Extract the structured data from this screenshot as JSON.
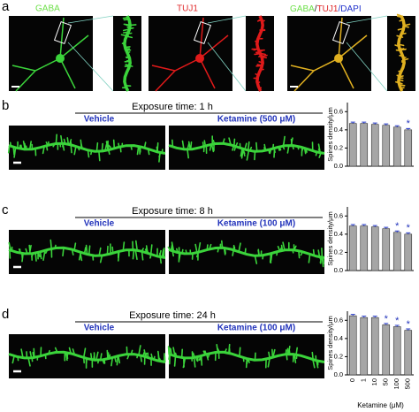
{
  "figure": {
    "panel_a": {
      "letter": "a",
      "gaba": "GABA",
      "tuj1": "TUJ1",
      "merge_gaba": "GABA",
      "merge_sep1": "/",
      "merge_tuj1": "TUJ1",
      "merge_dapi": "/DAPI"
    },
    "rows": [
      {
        "letter": "b",
        "exposure": "Exposure time: 1 h",
        "vehicle": "Vehicle",
        "ketamine": "Ketamine (500 μM)"
      },
      {
        "letter": "c",
        "exposure": "Exposure time: 8 h",
        "vehicle": "Vehicle",
        "ketamine": "Ketamine (100 μM)"
      },
      {
        "letter": "d",
        "exposure": "Exposure time: 24 h",
        "vehicle": "Vehicle",
        "ketamine": "Ketamine (100 μM)"
      }
    ]
  },
  "chart_data": [
    {
      "type": "bar",
      "ylabel": "Spines density/μm",
      "color": "#a6a6a6",
      "error_color": "#2b3fc8",
      "values": [
        0.47,
        0.47,
        0.46,
        0.45,
        0.43,
        0.4
      ],
      "errors": [
        0.015,
        0.015,
        0.015,
        0.015,
        0.015,
        0.015
      ],
      "significance": [
        null,
        null,
        null,
        null,
        null,
        "*"
      ],
      "ylim": [
        0,
        0.7
      ],
      "yticks": [
        {
          "value": 0,
          "label": "0.0"
        },
        0.2,
        0.4,
        0.6
      ]
    },
    {
      "type": "bar",
      "ylabel": "Spines density/μm",
      "color": "#a6a6a6",
      "error_color": "#2b3fc8",
      "values": [
        0.49,
        0.49,
        0.48,
        0.46,
        0.42,
        0.4
      ],
      "errors": [
        0.015,
        0.015,
        0.015,
        0.015,
        0.015,
        0.015
      ],
      "significance": [
        null,
        null,
        null,
        null,
        "*",
        "*"
      ],
      "ylim": [
        0,
        0.7
      ],
      "yticks": [
        {
          "value": 0,
          "label": "0.0"
        },
        0.2,
        0.4,
        0.6
      ]
    },
    {
      "type": "bar",
      "ylabel": "Spines density/μm",
      "xlabel": "Ketamine (μM)",
      "color": "#a6a6a6",
      "error_color": "#2b3fc8",
      "categories": [
        "0",
        "1",
        "10",
        "50",
        "100",
        "500"
      ],
      "values": [
        0.65,
        0.63,
        0.63,
        0.55,
        0.53,
        0.49
      ],
      "errors": [
        0.015,
        0.015,
        0.015,
        0.015,
        0.015,
        0.015
      ],
      "significance": [
        null,
        null,
        null,
        "*",
        "*",
        "*"
      ],
      "ylim": [
        0,
        0.7
      ],
      "yticks": [
        {
          "value": 0,
          "label": "0.0"
        },
        0.2,
        0.4,
        0.6
      ]
    }
  ]
}
